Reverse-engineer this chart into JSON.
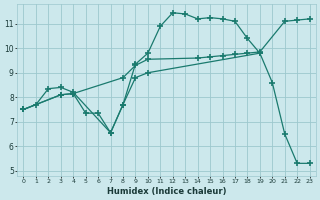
{
  "xlabel": "Humidex (Indice chaleur)",
  "xlim": [
    -0.5,
    23.5
  ],
  "ylim": [
    4.8,
    11.8
  ],
  "yticks": [
    5,
    6,
    7,
    8,
    9,
    10,
    11
  ],
  "xticks": [
    0,
    1,
    2,
    3,
    4,
    5,
    6,
    7,
    8,
    9,
    10,
    11,
    12,
    13,
    14,
    15,
    16,
    17,
    18,
    19,
    20,
    21,
    22,
    23
  ],
  "bg_color": "#cce8ec",
  "grid_color": "#9dc8ce",
  "line_color": "#1a7a6e",
  "s1_x": [
    0,
    1,
    2,
    3,
    4,
    7,
    8,
    9,
    10,
    11,
    12,
    13,
    14,
    15,
    16,
    17,
    18,
    19
  ],
  "s1_y": [
    7.5,
    7.7,
    8.35,
    8.4,
    8.2,
    6.55,
    7.7,
    9.35,
    9.8,
    10.9,
    11.45,
    11.4,
    11.2,
    11.25,
    11.2,
    11.1,
    10.4,
    9.8
  ],
  "s2_x": [
    0,
    3,
    4,
    8,
    9,
    10,
    14,
    15,
    16,
    17,
    18,
    19,
    21,
    22,
    23
  ],
  "s2_y": [
    7.5,
    8.1,
    8.15,
    8.8,
    9.3,
    9.55,
    9.6,
    9.65,
    9.7,
    9.75,
    9.8,
    9.85,
    11.1,
    11.15,
    11.2
  ],
  "s3_x": [
    0,
    3,
    4,
    5,
    6,
    7,
    8,
    9,
    10,
    19,
    20,
    21,
    22,
    23
  ],
  "s3_y": [
    7.5,
    8.1,
    8.15,
    7.35,
    7.35,
    6.55,
    7.7,
    8.8,
    9.0,
    9.8,
    8.6,
    6.5,
    5.3,
    5.3
  ]
}
